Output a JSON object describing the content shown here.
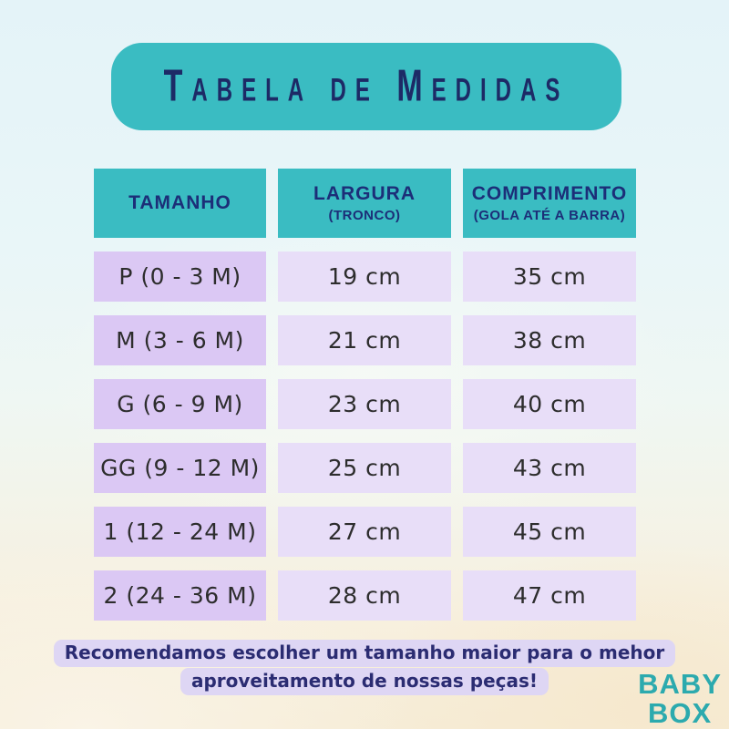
{
  "page": {
    "title": "Tabela de Medidas"
  },
  "table": {
    "headers": {
      "col1": "TAMANHO",
      "col2_main": "LARGURA",
      "col2_sub": "(TRONCO)",
      "col3_main": "COMPRIMENTO",
      "col3_sub": "(GOLA ATÉ A BARRA)"
    },
    "rows": [
      {
        "size": "P (0 - 3 M)",
        "largura": "19 cm",
        "comprimento": "35 cm"
      },
      {
        "size": "M (3 - 6 M)",
        "largura": "21 cm",
        "comprimento": "38 cm"
      },
      {
        "size": "G (6 - 9 M)",
        "largura": "23 cm",
        "comprimento": "40 cm"
      },
      {
        "size": "GG (9 - 12 M)",
        "largura": "25 cm",
        "comprimento": "43 cm"
      },
      {
        "size": "1 (12 - 24 M)",
        "largura": "27 cm",
        "comprimento": "45 cm"
      },
      {
        "size": "2 (24 - 36 M)",
        "largura": "28 cm",
        "comprimento": "47 cm"
      }
    ]
  },
  "note": {
    "line1": "Recomendamos escolher um tamanho maior para o mehor",
    "line2": "aproveitamento de nossas peças!"
  },
  "logo": {
    "line1": "BABY",
    "line2": "BOX"
  },
  "colors": {
    "teal": "#3abcc2",
    "navy_title": "#1d2a66",
    "navy_header": "#1c2e78",
    "lavender_dark": "#dbc8f4",
    "lavender_light": "#e8def8",
    "note_highlight": "#ded6f4",
    "note_text": "#2b2c72",
    "logo_teal": "#2caaae",
    "bg_top": "#e4f3f8",
    "bg_bottom": "#f6ecd6"
  },
  "chart_data": {
    "type": "table",
    "title": "Tabela de Medidas",
    "columns": [
      "Tamanho",
      "Largura (Tronco) cm",
      "Comprimento (Gola até a barra) cm"
    ],
    "rows": [
      [
        "P (0 - 3 M)",
        19,
        35
      ],
      [
        "M (3 - 6 M)",
        21,
        38
      ],
      [
        "G (6 - 9 M)",
        23,
        40
      ],
      [
        "GG (9 - 12 M)",
        25,
        43
      ],
      [
        "1 (12 - 24 M)",
        27,
        45
      ],
      [
        "2 (24 - 36 M)",
        28,
        47
      ]
    ]
  }
}
